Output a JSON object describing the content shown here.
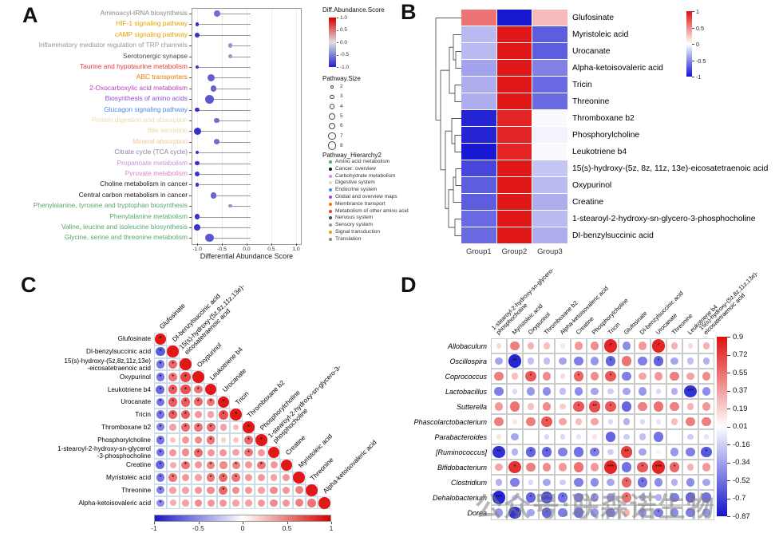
{
  "figure": {
    "panel_labels": {
      "a": "A",
      "b": "B",
      "c": "C",
      "d": "D"
    },
    "watermark": "公众号:联森诺生物"
  },
  "chart_data": [
    {
      "id": "A",
      "panel": "A",
      "type": "scatter",
      "xlabel": "Differential Abundance Score",
      "xlim": [
        -1,
        1
      ],
      "x_ticks": [
        "-1.0",
        "-0.5",
        "0.0",
        "0.5",
        "1.0"
      ],
      "x_tick_values": [
        -1,
        -0.5,
        0,
        0.5,
        1
      ],
      "legend": {
        "score_title": "Diff.Abundance.Score",
        "score_ticks": [
          "1.0",
          "0.5",
          "0.0",
          "-0.5",
          "-1.0"
        ],
        "score_tick_values": [
          1,
          0.5,
          0,
          -0.5,
          -1
        ],
        "size_title": "Pathway.Size",
        "sizes": [
          2,
          3,
          4,
          5,
          6,
          7,
          8
        ],
        "hierarchy_title": "Pathway_Hierarchy2",
        "categories": [
          {
            "label": "Amino acid metabolism",
            "color": "#55A868"
          },
          {
            "label": "Cancer: overview",
            "color": "#1A1A1A"
          },
          {
            "label": "Carbohydrate metabolism",
            "color": "#C791D6"
          },
          {
            "label": "Digestive system",
            "color": "#EAD9A8"
          },
          {
            "label": "Endocrine system",
            "color": "#4C86E8"
          },
          {
            "label": "Global and overview maps",
            "color": "#A844C8"
          },
          {
            "label": "Membrance transport",
            "color": "#F07800"
          },
          {
            "label": "Metabolism of other amino acid",
            "color": "#E23B3B"
          },
          {
            "label": "Nervous system",
            "color": "#4A4A4A"
          },
          {
            "label": "Sensory system",
            "color": "#969696"
          },
          {
            "label": "Signal transduction",
            "color": "#E2A400"
          },
          {
            "label": "Translation",
            "color": "#8A8A8A"
          }
        ]
      },
      "points": [
        {
          "label": "Aminoacyl-tRNA biosynthesis",
          "color": "#8A8A8A",
          "score": -0.6,
          "size": 5
        },
        {
          "label": "HIF-1 signaling pathway",
          "color": "#E2A400",
          "score": -1.0,
          "size": 2
        },
        {
          "label": "cAMP signaling pathway",
          "color": "#E2A400",
          "score": -1.0,
          "size": 3
        },
        {
          "label": "Inflammatory mediator regulation of TRP channels",
          "color": "#969696",
          "score": -0.33,
          "size": 3
        },
        {
          "label": "Serotonergic synapse",
          "color": "#4A4A4A",
          "score": -0.33,
          "size": 3
        },
        {
          "label": "Taurine and hypotaurine metabolism",
          "color": "#E23B3B",
          "score": -1.0,
          "size": 2
        },
        {
          "label": "ABC transporters",
          "color": "#F07800",
          "score": -0.71,
          "size": 6
        },
        {
          "label": "2-Oxocarboxylic acid metabolism",
          "color": "#BB3BBB",
          "score": -0.67,
          "size": 5
        },
        {
          "label": "Biosynthesis of amino acids",
          "color": "#8A50D0",
          "score": -0.75,
          "size": 8
        },
        {
          "label": "Glucagon signaling pathway",
          "color": "#4C86E8",
          "score": -1.0,
          "size": 3
        },
        {
          "label": "Protein digestion and absorption",
          "color": "#EAD9A8",
          "score": -0.6,
          "size": 4
        },
        {
          "label": "Bile secretion",
          "color": "#EAD9A8",
          "score": -1.0,
          "size": 6
        },
        {
          "label": "Mineral absorption",
          "color": "#F0C896",
          "score": -0.6,
          "size": 4
        },
        {
          "label": "Citrate cycle (TCA cycle)",
          "color": "#8E7FA8",
          "score": -1.0,
          "size": 2
        },
        {
          "label": "Propanoate metabolism",
          "color": "#C791D6",
          "score": -1.0,
          "size": 3
        },
        {
          "label": "Pyruvate metabolism",
          "color": "#DC82C8",
          "score": -1.0,
          "size": 4
        },
        {
          "label": "Choline metabolism in cancer",
          "color": "#1A1A1A",
          "score": -1.0,
          "size": 2
        },
        {
          "label": "Central carbon metabolism in cancer",
          "color": "#1A1A1A",
          "score": -0.67,
          "size": 5
        },
        {
          "label": "Phenylalanine, tyrosine and tryptophan biosynthesis",
          "color": "#55A868",
          "score": -0.33,
          "size": 2
        },
        {
          "label": "Phenylalanine metabolism",
          "color": "#55A868",
          "score": -1.0,
          "size": 4
        },
        {
          "label": "Valine, leucine and isoleucine biosynthesis",
          "color": "#55A868",
          "score": -1.0,
          "size": 5
        },
        {
          "label": "Glycine, serine and threonine metabolism",
          "color": "#55A868",
          "score": -0.75,
          "size": 7
        }
      ]
    },
    {
      "id": "B",
      "panel": "B",
      "type": "heatmap",
      "rows": [
        "Glufosinate",
        "Myristoleic acid",
        "Urocanate",
        "Alpha-ketoisovaleric acid",
        "Tricin",
        "Threonine",
        "Thromboxane b2",
        "Phosphorylcholine",
        "Leukotriene b4",
        "15(s)-hydroxy-(5z, 8z, 11z, 13e)-eicosatetraenoic acid",
        "Oxypurinol",
        "Creatine",
        "1-stearoyl-2-hydroxy-sn-glycero-3-phosphocholine",
        "DI-benzylsuccinic acid"
      ],
      "columns": [
        "Group1",
        "Group2",
        "Group3"
      ],
      "values": [
        [
          0.6,
          -1,
          0.3
        ],
        [
          -0.3,
          1,
          -0.7
        ],
        [
          -0.3,
          1,
          -0.7
        ],
        [
          -0.4,
          1,
          -0.55
        ],
        [
          -0.35,
          1,
          -0.65
        ],
        [
          -0.35,
          1,
          -0.65
        ],
        [
          -0.95,
          0.95,
          -0.02
        ],
        [
          -0.95,
          0.95,
          -0.05
        ],
        [
          -1,
          0.95,
          -0.02
        ],
        [
          -0.8,
          1,
          -0.25
        ],
        [
          -0.7,
          1,
          -0.3
        ],
        [
          -0.7,
          1,
          -0.35
        ],
        [
          -0.65,
          1,
          -0.3
        ],
        [
          -0.65,
          1,
          -0.35
        ]
      ],
      "colorbar_ticks": [
        "1",
        "0.5",
        "0",
        "-0.5",
        "-1"
      ],
      "colorbar_tick_values": [
        1,
        0.5,
        0,
        -0.5,
        -1
      ]
    },
    {
      "id": "C",
      "panel": "C",
      "type": "heatmap",
      "subtype": "correlation-lower-triangle",
      "labels_left": [
        "Glufosinate",
        "DI-benzylsuccinic  acid",
        "15(s)-hydroxy-(5z,8z,11z,13e)\n-eicosatetraenoic acid",
        "Oxypurinol",
        "Leukotriene b4",
        "Urocanate",
        "Tricin",
        "Thromboxane  b2",
        "Phosphorylcholine",
        "1-stearoyl-2-hydroxy-sn-glycerol\n-3-phosphocholine",
        "Creatine",
        "Myristoleic acid",
        "Threonine",
        "Alpha-ketoisovaleric  acid"
      ],
      "labels_diag": [
        "Glufosinate",
        "DI-benzylsuccinic acid",
        "15(s)-hydroxy-(5z,8z,11z,13e)-\neicosatetraenoic acid",
        "Oxypurinol",
        "Leukotriene b4",
        "Urocanate",
        "Tricin",
        "Thromboxane b2",
        "Phosphorylcholine",
        "1-stearoyl-2-hydroxy-sn-glycero-3-\nphosphocholine",
        "Creatine",
        "Myristoleic acid",
        "Threonine",
        "Alpha-ketoisovaleric acid"
      ],
      "values": [
        [
          1
        ],
        [
          -0.7,
          1
        ],
        [
          -0.6,
          0.65,
          1
        ],
        [
          -0.6,
          0.6,
          0.8,
          1
        ],
        [
          -0.65,
          0.7,
          0.75,
          0.6,
          1
        ],
        [
          -0.6,
          0.7,
          0.7,
          0.65,
          0.6,
          1
        ],
        [
          -0.6,
          0.7,
          0.7,
          0.45,
          0.4,
          0.75,
          1
        ],
        [
          -0.55,
          0.4,
          0.65,
          0.6,
          0.65,
          0.4,
          0.3,
          1
        ],
        [
          -0.6,
          0.25,
          0.45,
          0.5,
          0.6,
          0.2,
          0.25,
          0.65,
          1
        ],
        [
          -0.6,
          0.45,
          0.5,
          0.65,
          0.45,
          0.45,
          0.4,
          0.6,
          0.45,
          1
        ],
        [
          -0.65,
          0.35,
          0.6,
          0.45,
          0.55,
          0.5,
          0.55,
          0.45,
          0.6,
          0.45,
          1
        ],
        [
          -0.6,
          0.6,
          0.45,
          0.4,
          0.6,
          0.65,
          0.6,
          0.45,
          0.45,
          0.4,
          0.45,
          1
        ],
        [
          -0.55,
          0.4,
          0.4,
          0.45,
          0.5,
          0.65,
          0.5,
          0.45,
          0.4,
          0.5,
          0.45,
          0.55,
          1
        ],
        [
          -0.5,
          0.35,
          0.4,
          0.5,
          0.45,
          0.45,
          0.4,
          0.4,
          0.45,
          0.5,
          0.45,
          0.55,
          0.6,
          1
        ]
      ],
      "sig": [
        [
          "*"
        ],
        [
          "*",
          ""
        ],
        [
          "*",
          "*",
          ""
        ],
        [
          "*",
          "*",
          "*",
          ""
        ],
        [
          "*",
          "*",
          "*",
          "*",
          ""
        ],
        [
          "*",
          "*",
          "*",
          "*",
          "*",
          "*"
        ],
        [
          "*",
          "*",
          "*",
          "",
          "",
          "*",
          "*"
        ],
        [
          "*",
          "",
          "*",
          "*",
          "*",
          "",
          "",
          "*"
        ],
        [
          "*",
          "",
          "",
          "",
          "*",
          "",
          "",
          "*",
          "*"
        ],
        [
          "*",
          "",
          "",
          "*",
          "",
          "",
          "",
          "*",
          "",
          ""
        ],
        [
          "*",
          "",
          "*",
          "",
          "*",
          "",
          "*",
          "",
          "*",
          "",
          ""
        ],
        [
          "*",
          "*",
          "",
          "",
          "*",
          "*",
          "*",
          "",
          "",
          "",
          "",
          ""
        ],
        [
          "*",
          "",
          "",
          "",
          "",
          "*",
          "",
          "",
          "",
          "",
          "",
          "",
          ""
        ],
        [
          "*",
          "",
          "",
          "",
          "",
          "",
          "",
          "",
          "",
          "",
          "",
          "",
          "",
          ""
        ]
      ],
      "colorbar_ticks": [
        "-1",
        "-0.5",
        "0",
        "0.5",
        "1"
      ],
      "colorbar_tick_values": [
        -1,
        -0.5,
        0,
        0.5,
        1
      ]
    },
    {
      "id": "D",
      "panel": "D",
      "type": "heatmap",
      "subtype": "correlation-matrix",
      "rows": [
        "Allobaculum",
        "Oscillospira",
        "Coprococcus",
        "Lactobacillus",
        "Sutterella",
        "Phascolarctobacterium",
        "Parabacteroides",
        "[Ruminococcus]",
        "Bifidobacterium",
        "Clostridium",
        "Dehalobacterium",
        "Dorea"
      ],
      "columns": [
        "1-stearoyl-2-hydroxy-sn-glycero-\nphosphocholine",
        "Myristoleic acid",
        "Oxypurinol",
        "Thromboxane b2",
        "Alpha-ketoisovaleric acid",
        "Creatine",
        "Phosphorylcholine",
        "Tricin",
        "Glufosinate",
        "DI-benzylsuccinic acid",
        "Urocanate",
        "Threonine",
        "Leukotriene b4",
        "15(s)-hydroxy-(5z,8z,11z,13e)-\neicosatetraenoic acid"
      ],
      "values": [
        [
          0.15,
          0.5,
          0.3,
          0.25,
          0.1,
          0.4,
          0.45,
          0.85,
          -0.45,
          0.4,
          0.85,
          0.3,
          0.15,
          0.3
        ],
        [
          -0.35,
          -0.85,
          -0.25,
          -0.25,
          -0.35,
          -0.5,
          -0.4,
          -0.6,
          0.55,
          -0.5,
          -0.6,
          -0.35,
          -0.25,
          -0.3
        ],
        [
          0.5,
          0.25,
          0.65,
          0.45,
          0.15,
          0.6,
          0.45,
          0.65,
          -0.5,
          0.35,
          0.4,
          0.5,
          0.35,
          0.45
        ],
        [
          -0.5,
          -0.15,
          -0.4,
          -0.45,
          -0.25,
          -0.45,
          -0.35,
          -0.2,
          -0.35,
          -0.4,
          -0.15,
          -0.3,
          -0.8,
          -0.45
        ],
        [
          0.4,
          0.55,
          0.25,
          0.45,
          0.2,
          0.65,
          0.7,
          0.65,
          -0.6,
          0.5,
          0.55,
          0.5,
          0.3,
          0.4
        ],
        [
          0.5,
          0.1,
          0.5,
          0.65,
          0.35,
          0.25,
          0.35,
          -0.15,
          -0.3,
          -0.15,
          -0.1,
          0.25,
          0.5,
          0.5
        ],
        [
          0.1,
          -0.35,
          0,
          -0.15,
          -0.15,
          -0.1,
          0.1,
          -0.6,
          -0.2,
          -0.25,
          -0.55,
          0,
          -0.2,
          -0.1
        ],
        [
          -0.8,
          -0.3,
          -0.6,
          -0.6,
          -0.5,
          -0.55,
          -0.5,
          -0.2,
          0.75,
          -0.35,
          -0.05,
          -0.4,
          -0.5,
          -0.65
        ],
        [
          0.35,
          0.8,
          0.5,
          0.45,
          0.4,
          0.55,
          0.4,
          0.85,
          -0.55,
          0.65,
          0.85,
          0.6,
          0.3,
          0.4
        ],
        [
          -0.3,
          -0.5,
          -0.15,
          -0.35,
          -0.2,
          -0.5,
          -0.45,
          -0.35,
          0.6,
          -0.55,
          -0.45,
          -0.3,
          -0.45,
          -0.35
        ],
        [
          -0.85,
          -0.2,
          -0.6,
          -0.7,
          -0.55,
          -0.5,
          -0.4,
          -0.4,
          0.55,
          -0.3,
          -0.3,
          -0.5,
          -0.6,
          -0.55
        ],
        [
          -0.4,
          -0.8,
          -0.35,
          -0.6,
          -0.5,
          -0.55,
          -0.4,
          -0.5,
          0.3,
          -0.4,
          -0.5,
          -0.45,
          -0.5,
          -0.4
        ]
      ],
      "sig": [
        [
          "",
          "",
          "",
          "",
          "",
          "",
          "",
          "*",
          "",
          "",
          "*",
          "",
          "",
          ""
        ],
        [
          "",
          "**",
          "",
          "",
          "",
          "",
          "",
          "*",
          "",
          "",
          "*",
          "",
          "",
          ""
        ],
        [
          "",
          "",
          "*",
          "",
          "",
          "*",
          "",
          "*",
          "",
          "",
          "",
          "",
          "",
          ""
        ],
        [
          "",
          "",
          "",
          "",
          "",
          "",
          "",
          "",
          "",
          "",
          "",
          "",
          "***",
          ""
        ],
        [
          "",
          "",
          "",
          "",
          "",
          "*",
          "**",
          "*",
          "",
          "",
          "",
          "",
          "",
          ""
        ],
        [
          "",
          "",
          "",
          "*",
          "",
          "",
          "",
          "",
          "",
          "",
          "",
          "",
          "",
          ""
        ],
        [
          "",
          "",
          "",
          "",
          "",
          "",
          "",
          "",
          "",
          "",
          "",
          "",
          "",
          ""
        ],
        [
          "**",
          "",
          "*",
          "*",
          "",
          "",
          "*",
          "",
          "**",
          "",
          "",
          "",
          "",
          "*"
        ],
        [
          "",
          "*",
          "",
          "",
          "",
          "",
          "",
          "***",
          "",
          "*",
          "***",
          "*",
          "",
          ""
        ],
        [
          "",
          "",
          "",
          "",
          "",
          "",
          "",
          "",
          "*",
          "*",
          "",
          "",
          "",
          ""
        ],
        [
          "***",
          "",
          "*",
          "**",
          "*",
          "",
          "",
          "",
          "*",
          "",
          "",
          "",
          "",
          ""
        ],
        [
          "",
          "**",
          "",
          "*",
          "",
          "",
          "",
          "",
          "",
          "",
          "*",
          "",
          "",
          ""
        ]
      ],
      "colorbar_ticks": [
        "0.9",
        "0.72",
        "0.55",
        "0.37",
        "0.19",
        "0.01",
        "-0.16",
        "-0.34",
        "-0.52",
        "-0.7",
        "-0.87"
      ],
      "colorbar_tick_values": [
        0.9,
        0.72,
        0.55,
        0.37,
        0.19,
        0.01,
        -0.16,
        -0.34,
        -0.52,
        -0.7,
        -0.87
      ]
    }
  ]
}
